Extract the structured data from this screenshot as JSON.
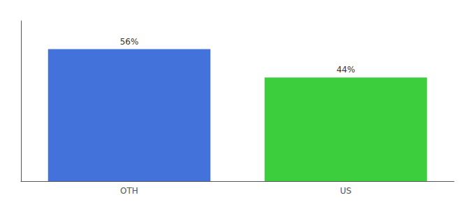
{
  "chart_data": {
    "type": "bar",
    "categories": [
      "OTH",
      "US"
    ],
    "values": [
      56,
      44
    ],
    "value_labels": [
      "56%",
      "44%"
    ],
    "colors": [
      "#4472db",
      "#3dce3d"
    ],
    "ylim": [
      0,
      68
    ],
    "data_labels": true,
    "tick_labels": "x",
    "grid": false
  }
}
